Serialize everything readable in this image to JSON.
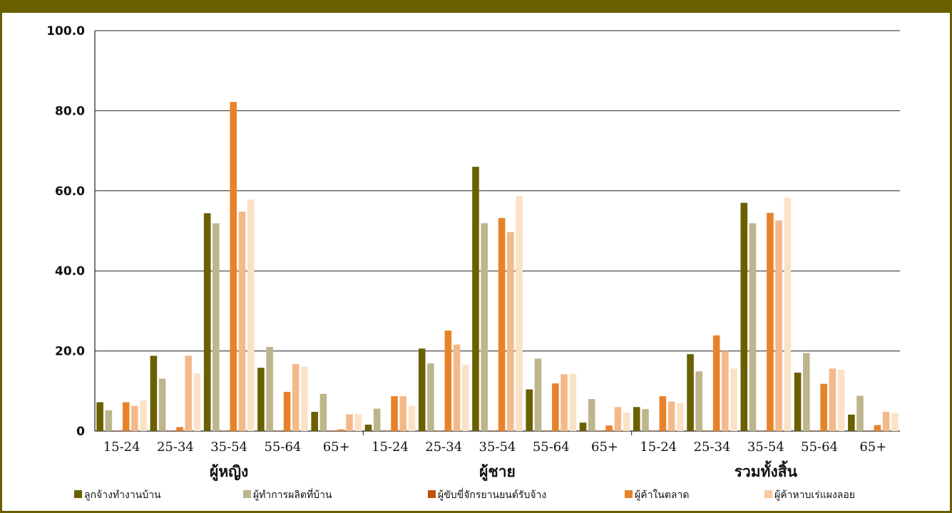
{
  "chart_data": {
    "type": "bar",
    "ylim": [
      0,
      100
    ],
    "yticks": [
      "0",
      "20.0",
      "40.0",
      "60.0",
      "80.0",
      "100.0"
    ],
    "ytick_values": [
      0,
      20,
      40,
      60,
      80,
      100
    ],
    "grid": true,
    "legend_position": "bottom",
    "groups": [
      {
        "label": "ผู้หญิง",
        "categories": [
          "15-24",
          "25-34",
          "35-54",
          "55-64",
          "65+"
        ]
      },
      {
        "label": "ผู้ชาย",
        "categories": [
          "15-24",
          "25-34",
          "35-54",
          "55-64",
          "65+"
        ]
      },
      {
        "label": "รวมทั้งสิ้น",
        "categories": [
          "15-24",
          "25-34",
          "35-54",
          "55-64",
          "65+"
        ]
      }
    ],
    "series": [
      {
        "name": "ลูกจ้างทำงานบ้าน",
        "color": "#6b6000",
        "values": [
          7.2,
          18.8,
          54.4,
          15.8,
          4.8,
          1.6,
          20.6,
          66.0,
          10.4,
          2.1,
          6.0,
          19.2,
          57.0,
          14.6,
          4.1
        ]
      },
      {
        "name": "ผู้ทำการผลิตที่บ้าน",
        "color": "#bdb58c",
        "values": [
          5.2,
          13.1,
          51.9,
          21.0,
          9.3,
          5.6,
          16.9,
          51.9,
          18.1,
          8.0,
          5.5,
          14.9,
          51.9,
          19.5,
          8.8
        ]
      },
      {
        "name": "ผู้ขับขี่จักรยานยนต์รับจ้าง",
        "color": "#c8500f",
        "values": [
          0,
          0,
          0,
          0,
          0,
          0,
          0,
          0,
          0,
          0,
          0,
          0,
          0,
          0,
          0
        ]
      },
      {
        "name": "ผู้ค้าในตลาด",
        "color": "#e8822a",
        "values": [
          7.2,
          1.0,
          82.2,
          9.8,
          0.4,
          8.7,
          25.1,
          53.2,
          11.9,
          1.4,
          8.7,
          23.9,
          54.5,
          11.8,
          1.5
        ]
      },
      {
        "name": "ผู้ค้าหาบเร่แผงลอย (light)",
        "color": "#f4b98a",
        "values": [
          6.3,
          18.8,
          54.8,
          16.7,
          4.2,
          8.7,
          21.6,
          49.7,
          14.2,
          6.0,
          7.4,
          20.0,
          52.6,
          15.6,
          4.8
        ]
      },
      {
        "name": "ผู้ค้าหาบเร่แผงลอย",
        "color": "#fbe2c6",
        "values": [
          7.7,
          14.4,
          57.8,
          16.1,
          4.2,
          6.3,
          16.6,
          58.7,
          14.3,
          4.6,
          7.0,
          15.6,
          58.2,
          15.3,
          4.5
        ]
      }
    ],
    "legend": [
      {
        "name": "ลูกจ้างทำงานบ้าน",
        "color": "#6b6000"
      },
      {
        "name": "ผู้ทำการผลิตที่บ้าน",
        "color": "#bdb58c"
      },
      {
        "name": "ผู้ขับขี่จักรยานยนต์รับจ้าง",
        "color": "#c8500f"
      },
      {
        "name": "ผู้ค้าในตลาด",
        "color": "#e8822a"
      },
      {
        "name": "ผู้ค้าหาบเร่แผงลอย",
        "color": "#f9caa0"
      }
    ]
  }
}
